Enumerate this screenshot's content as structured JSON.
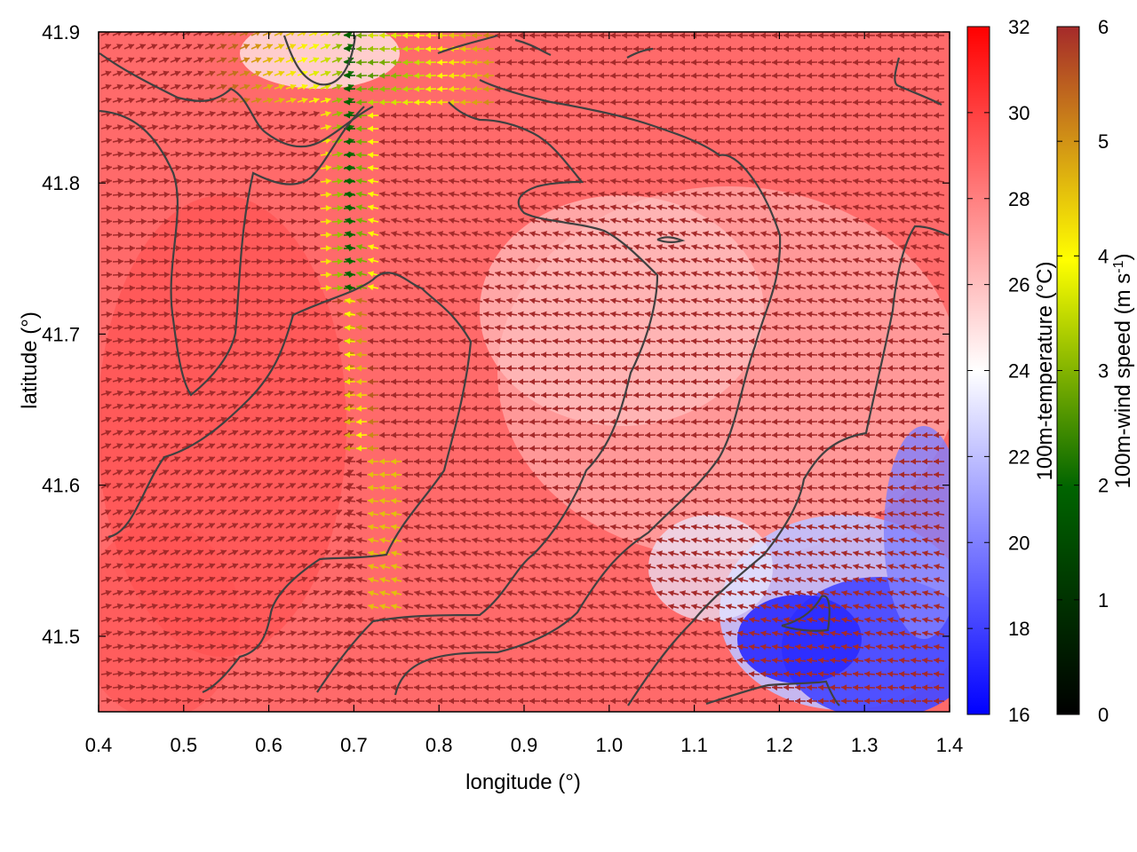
{
  "chart_data": {
    "type": "heatmap",
    "title": "",
    "xlabel": "longitude (°)",
    "ylabel": "latitude (°)",
    "xlim": [
      0.4,
      1.4
    ],
    "ylim": [
      41.45,
      41.9
    ],
    "xticks": [
      0.4,
      0.5,
      0.6,
      0.7,
      0.8,
      0.9,
      1.0,
      1.1,
      1.2,
      1.3,
      1.4
    ],
    "xtick_labels": [
      "0.4",
      "0.5",
      "0.6",
      "0.7",
      "0.8",
      "0.9",
      "1.0",
      "1.1",
      "1.2",
      "1.3",
      "1.4"
    ],
    "yticks": [
      41.5,
      41.6,
      41.7,
      41.8,
      41.9
    ],
    "ytick_labels": [
      "41.5",
      "41.6",
      "41.7",
      "41.8",
      "41.9"
    ],
    "grid": false,
    "layers": [
      {
        "type": "heatmap",
        "variable": "100m-temperature",
        "colorbar": {
          "label": "100m-temperature (°C)",
          "range": [
            16,
            32
          ],
          "ticks": [
            16,
            18,
            20,
            22,
            24,
            26,
            28,
            30,
            32
          ],
          "tick_labels": [
            "16",
            "18",
            "20",
            "22",
            "24",
            "26",
            "28",
            "30",
            "32"
          ],
          "colors": [
            "#0000ff",
            "#ffffff",
            "#ff0000"
          ]
        }
      },
      {
        "type": "vector",
        "variable": "100m-wind speed",
        "colorbar": {
          "label_main": "100m-wind speed (m s",
          "label_sup": "-1",
          "label_end": ")",
          "range": [
            0,
            6
          ],
          "ticks": [
            0,
            1,
            2,
            3,
            4,
            5,
            6
          ],
          "tick_labels": [
            "0",
            "1",
            "2",
            "3",
            "4",
            "5",
            "6"
          ],
          "colors": [
            "#000000",
            "#006400",
            "#ffff00",
            "#a52a2a"
          ]
        }
      },
      {
        "type": "contour",
        "color": "#404040"
      }
    ],
    "colors": {
      "warm": "#ff4040",
      "cool": "#3030ff",
      "wind_max": "#a52a2a",
      "contour": "#404040"
    }
  }
}
